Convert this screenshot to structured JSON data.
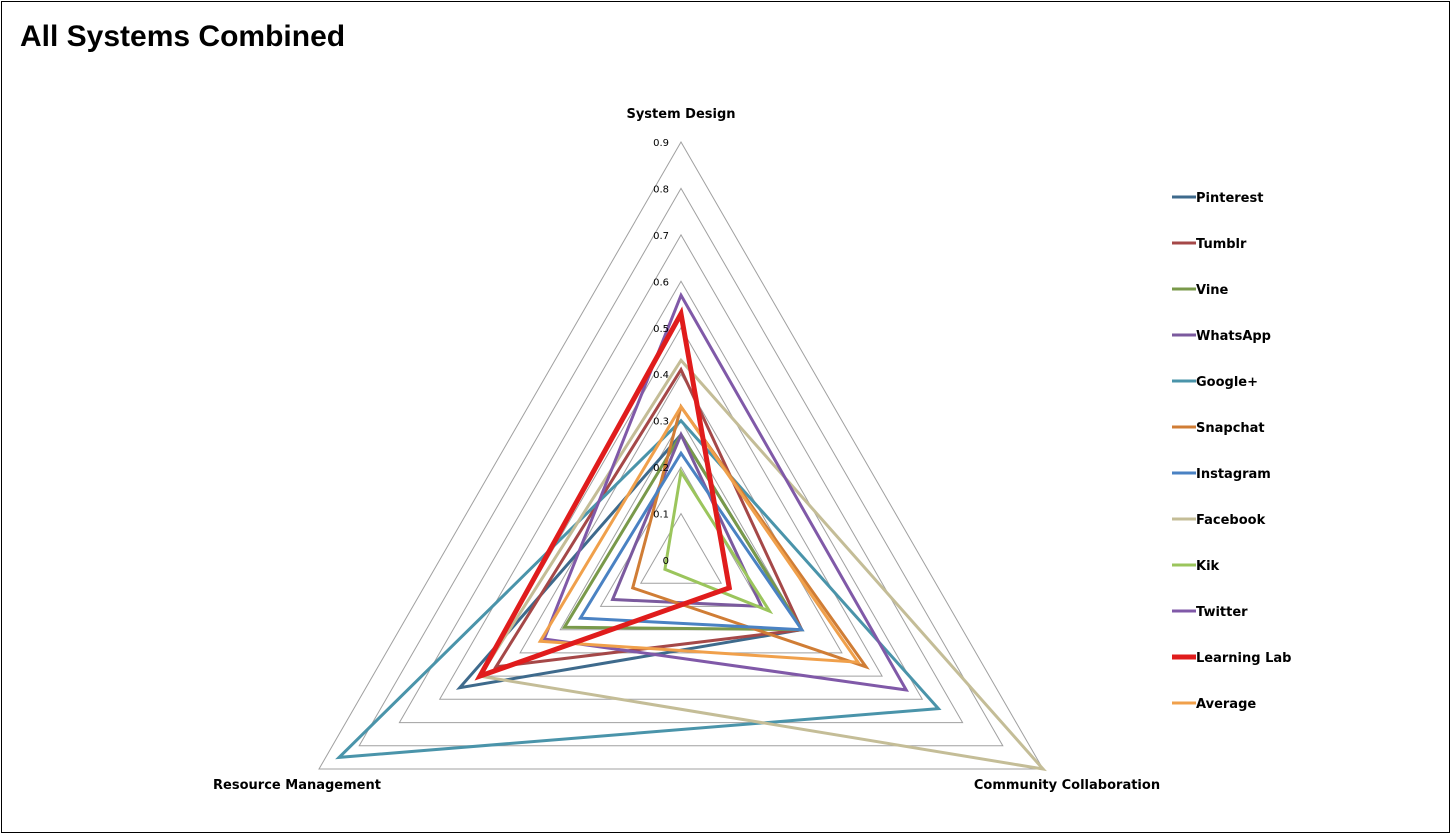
{
  "chart_data": {
    "type": "radar",
    "title": "All Systems Combined",
    "axes": [
      "System Design",
      "Community Collaboration",
      "Resource Management"
    ],
    "ticks": [
      "0",
      "0.1",
      "0.2",
      "0.3",
      "0.4",
      "0.5",
      "0.6",
      "0.7",
      "0.8",
      "0.9"
    ],
    "range": [
      0,
      0.9
    ],
    "legend_position": "right",
    "series": [
      {
        "name": "Pinterest",
        "color": "#3e6a8c",
        "width": 3,
        "values": [
          0.27,
          0.3,
          0.55
        ]
      },
      {
        "name": "Tumblr",
        "color": "#a54848",
        "width": 3,
        "values": [
          0.41,
          0.3,
          0.46
        ]
      },
      {
        "name": "Vine",
        "color": "#79994a",
        "width": 3,
        "values": [
          0.27,
          0.3,
          0.29
        ]
      },
      {
        "name": "WhatsApp",
        "color": "#7b5a9e",
        "width": 3,
        "values": [
          0.27,
          0.2,
          0.17
        ]
      },
      {
        "name": "Google+",
        "color": "#4a94aa",
        "width": 3,
        "values": [
          0.3,
          0.64,
          0.85
        ]
      },
      {
        "name": "Snapchat",
        "color": "#d07d35",
        "width": 3,
        "values": [
          0.33,
          0.46,
          0.12
        ]
      },
      {
        "name": "Instagram",
        "color": "#4a82c3",
        "width": 3,
        "values": [
          0.23,
          0.3,
          0.25
        ]
      },
      {
        "name": "Facebook",
        "color": "#c4bd97",
        "width": 3,
        "values": [
          0.43,
          0.9,
          0.5
        ]
      },
      {
        "name": "Kik",
        "color": "#9bc55c",
        "width": 3,
        "values": [
          0.19,
          0.22,
          0.04
        ]
      },
      {
        "name": "Twitter",
        "color": "#8059a8",
        "width": 3,
        "values": [
          0.57,
          0.56,
          0.34
        ]
      },
      {
        "name": "Learning Lab",
        "color": "#e01c1c",
        "width": 5,
        "values": [
          0.53,
          0.12,
          0.5
        ]
      },
      {
        "name": "Average",
        "color": "#f0a04b",
        "width": 3,
        "values": [
          0.33,
          0.44,
          0.35
        ]
      }
    ]
  }
}
